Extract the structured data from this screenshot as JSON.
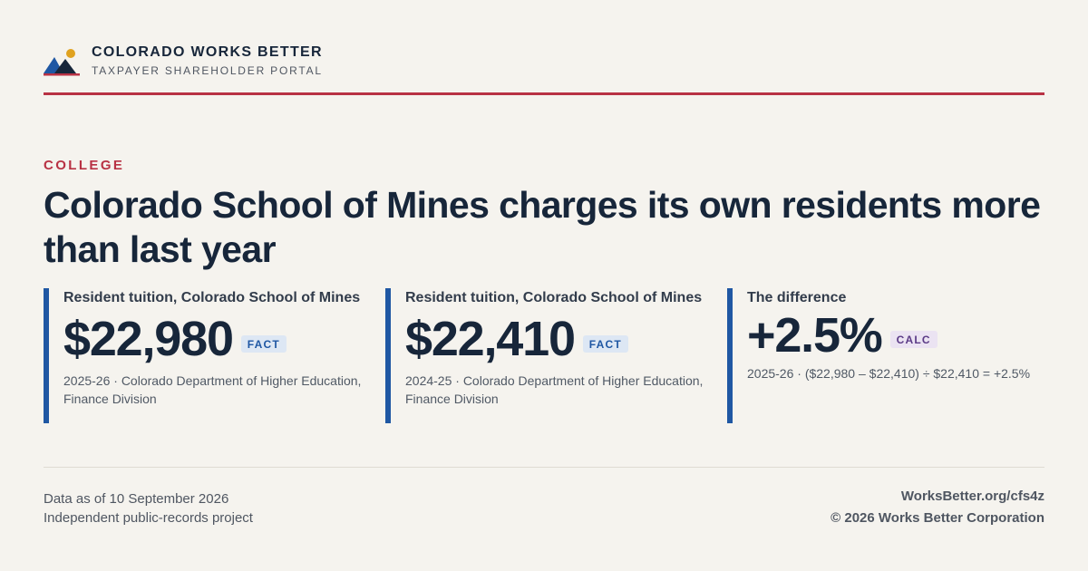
{
  "brand": {
    "title": "COLORADO WORKS BETTER",
    "subtitle": "TAXPAYER SHAREHOLDER PORTAL",
    "logo_icon": "mountain-sun-icon",
    "colors": {
      "accent": "#b83244",
      "navy": "#17263a",
      "blue": "#1f57a3",
      "sun": "#e0a21f"
    }
  },
  "article": {
    "kicker": "COLLEGE",
    "headline": "Colorado School of Mines charges its own residents more than last year"
  },
  "stats": [
    {
      "label": "Resident tuition, Colorado School of Mines",
      "value": "$22,980",
      "badge": "FACT",
      "source": "2025-26 · Colorado Department of Higher Education, Finance Division"
    },
    {
      "label": "Resident tuition, Colorado School of Mines",
      "value": "$22,410",
      "badge": "FACT",
      "source": "2024-25 · Colorado Department of Higher Education, Finance Division"
    },
    {
      "label": "The difference",
      "value": "+2.5%",
      "badge": "CALC",
      "source": "2025-26 · ($22,980 – $22,410) ÷ $22,410 = +2.5%"
    }
  ],
  "footer": {
    "data_as_of": "Data as of 10 September 2026",
    "project": "Independent public-records project",
    "url": "WorksBetter.org/cfs4z",
    "copyright": "© 2026 Works Better Corporation"
  }
}
